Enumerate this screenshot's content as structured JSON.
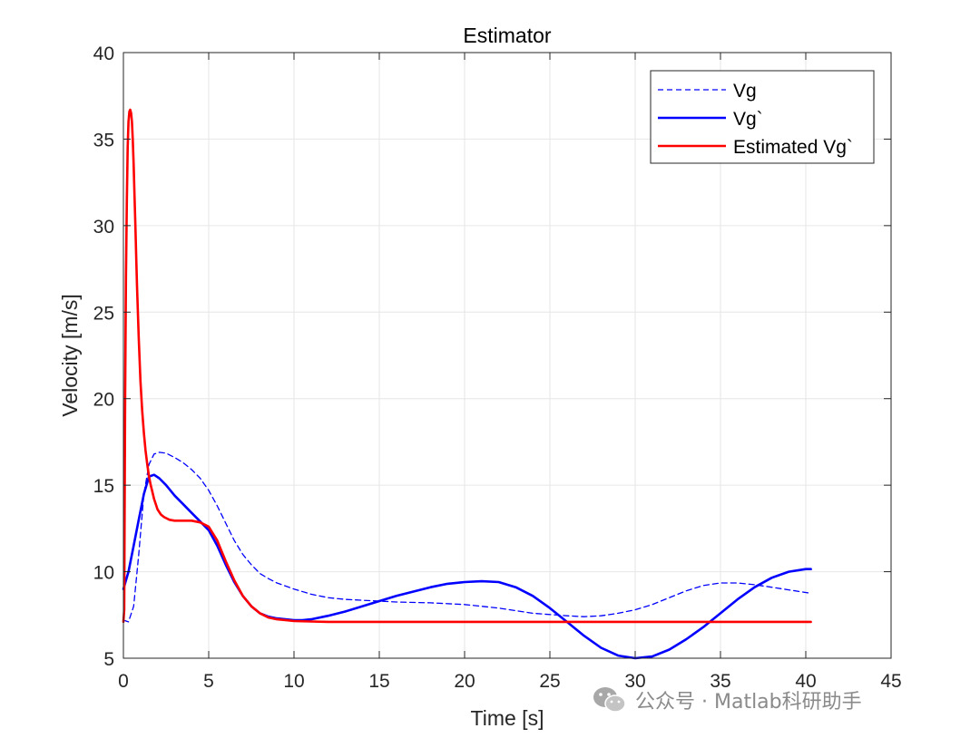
{
  "chart_data": {
    "type": "line",
    "title": "Estimator",
    "xlabel": "Time [s]",
    "ylabel": "Velocity [m/s]",
    "xlim": [
      0,
      45
    ],
    "ylim": [
      5,
      40
    ],
    "xticks": [
      0,
      5,
      10,
      15,
      20,
      25,
      30,
      35,
      40,
      45
    ],
    "yticks": [
      5,
      10,
      15,
      20,
      25,
      30,
      35,
      40
    ],
    "grid": true,
    "legend_position": "top-right",
    "series": [
      {
        "name": "Vg",
        "style": "dashed",
        "color": "#0000ff",
        "x": [
          0,
          0.3,
          0.6,
          0.9,
          1.2,
          1.5,
          1.8,
          2.1,
          2.5,
          3,
          3.5,
          4,
          4.5,
          5,
          5.5,
          6,
          6.5,
          7,
          7.5,
          8,
          8.5,
          9,
          10,
          11,
          12,
          13,
          14,
          15,
          16,
          18,
          20,
          22,
          24,
          26,
          27,
          28,
          29,
          30,
          31,
          32,
          33,
          34,
          35,
          36,
          37,
          38,
          39,
          40.3
        ],
        "y": [
          7.2,
          7.1,
          8.0,
          11.0,
          14.5,
          16.2,
          16.8,
          16.9,
          16.85,
          16.6,
          16.3,
          15.9,
          15.4,
          14.7,
          13.8,
          12.8,
          11.8,
          11.0,
          10.4,
          9.9,
          9.6,
          9.35,
          9.0,
          8.7,
          8.5,
          8.4,
          8.35,
          8.3,
          8.25,
          8.2,
          8.1,
          7.9,
          7.6,
          7.45,
          7.4,
          7.45,
          7.6,
          7.8,
          8.1,
          8.5,
          8.9,
          9.2,
          9.35,
          9.35,
          9.25,
          9.1,
          8.95,
          8.75
        ]
      },
      {
        "name": "Vg`",
        "style": "solid",
        "color": "#0000ff",
        "x": [
          0,
          0.3,
          0.6,
          0.9,
          1.2,
          1.5,
          1.8,
          2.1,
          2.5,
          3,
          3.5,
          4,
          4.5,
          5,
          5.5,
          6,
          6.5,
          7,
          7.5,
          8,
          8.5,
          9,
          9.5,
          10,
          10.5,
          11,
          12,
          13,
          14,
          15,
          16,
          17,
          18,
          19,
          20,
          21,
          22,
          23,
          24,
          25,
          26,
          27,
          28,
          29,
          30,
          31,
          32,
          33,
          34,
          35,
          36,
          37,
          38,
          39,
          40,
          40.3
        ],
        "y": [
          9.0,
          10.0,
          11.5,
          13.0,
          14.5,
          15.5,
          15.6,
          15.4,
          15.0,
          14.4,
          13.9,
          13.4,
          12.9,
          12.4,
          11.5,
          10.4,
          9.4,
          8.6,
          8.0,
          7.6,
          7.4,
          7.3,
          7.25,
          7.2,
          7.2,
          7.25,
          7.45,
          7.7,
          8.0,
          8.3,
          8.6,
          8.85,
          9.1,
          9.3,
          9.4,
          9.45,
          9.4,
          9.1,
          8.6,
          7.9,
          7.1,
          6.3,
          5.6,
          5.15,
          5.0,
          5.1,
          5.5,
          6.1,
          6.8,
          7.6,
          8.4,
          9.1,
          9.65,
          10.0,
          10.15,
          10.15
        ]
      },
      {
        "name": "Estimated Vg`",
        "style": "solid",
        "color": "#ff0000",
        "x": [
          0,
          0.05,
          0.1,
          0.15,
          0.2,
          0.25,
          0.3,
          0.35,
          0.4,
          0.45,
          0.5,
          0.55,
          0.6,
          0.65,
          0.7,
          0.75,
          0.8,
          0.9,
          1.0,
          1.1,
          1.2,
          1.3,
          1.4,
          1.5,
          1.6,
          1.7,
          1.8,
          1.9,
          2.0,
          2.2,
          2.4,
          2.7,
          3.0,
          3.5,
          4.0,
          4.5,
          5.0,
          5.5,
          6.0,
          6.5,
          7.0,
          7.5,
          8.0,
          8.5,
          9.0,
          9.5,
          10.0,
          11,
          12,
          15,
          20,
          25,
          30,
          35,
          40.3
        ],
        "y": [
          7.1,
          7.8,
          20.0,
          27.0,
          31.5,
          34.5,
          36.0,
          36.6,
          36.7,
          36.5,
          36.0,
          35.0,
          33.5,
          31.8,
          30.0,
          28.2,
          26.5,
          23.5,
          21.0,
          19.3,
          18.0,
          17.0,
          16.2,
          15.5,
          15.0,
          14.6,
          14.2,
          13.9,
          13.6,
          13.3,
          13.15,
          13.0,
          12.95,
          12.95,
          12.95,
          12.85,
          12.6,
          11.8,
          10.6,
          9.5,
          8.6,
          8.0,
          7.6,
          7.35,
          7.25,
          7.2,
          7.15,
          7.12,
          7.1,
          7.1,
          7.1,
          7.1,
          7.1,
          7.1,
          7.1
        ]
      }
    ]
  },
  "watermark": {
    "text": "公众号 · Matlab科研助手",
    "icon": "wechat-icon"
  }
}
